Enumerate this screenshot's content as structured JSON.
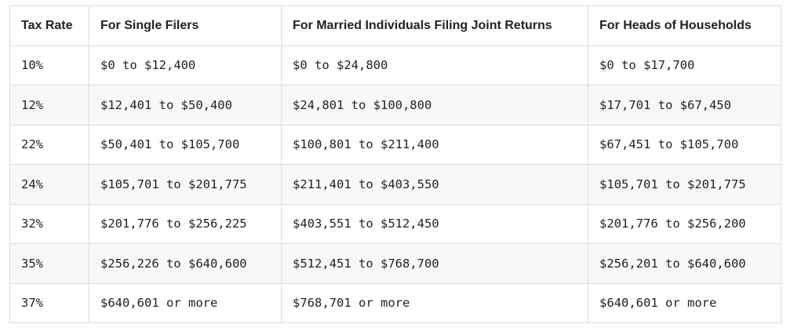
{
  "table": {
    "header": [
      "Tax Rate",
      "For Single Filers",
      "For Married Individuals Filing Joint Returns",
      "For Heads of Households"
    ],
    "rows": [
      [
        "10%",
        "$0 to $12,400",
        "$0 to $24,800",
        "$0 to $17,700"
      ],
      [
        "12%",
        "$12,401 to $50,400",
        "$24,801 to $100,800",
        "$17,701 to $67,450"
      ],
      [
        "22%",
        "$50,401 to $105,700",
        "$100,801 to $211,400",
        "$67,451 to $105,700"
      ],
      [
        "24%",
        "$105,701 to $201,775",
        "$211,401 to $403,550",
        "$105,701 to $201,775"
      ],
      [
        "32%",
        "$201,776 to $256,225",
        "$403,551 to $512,450",
        "$201,776 to $256,200"
      ],
      [
        "35%",
        "$256,226 to $640,600",
        "$512,451 to $768,700",
        "$256,201 to $640,600"
      ],
      [
        "37%",
        "$640,601 or more",
        "$768,701 or more",
        "$640,601 or more"
      ]
    ]
  }
}
